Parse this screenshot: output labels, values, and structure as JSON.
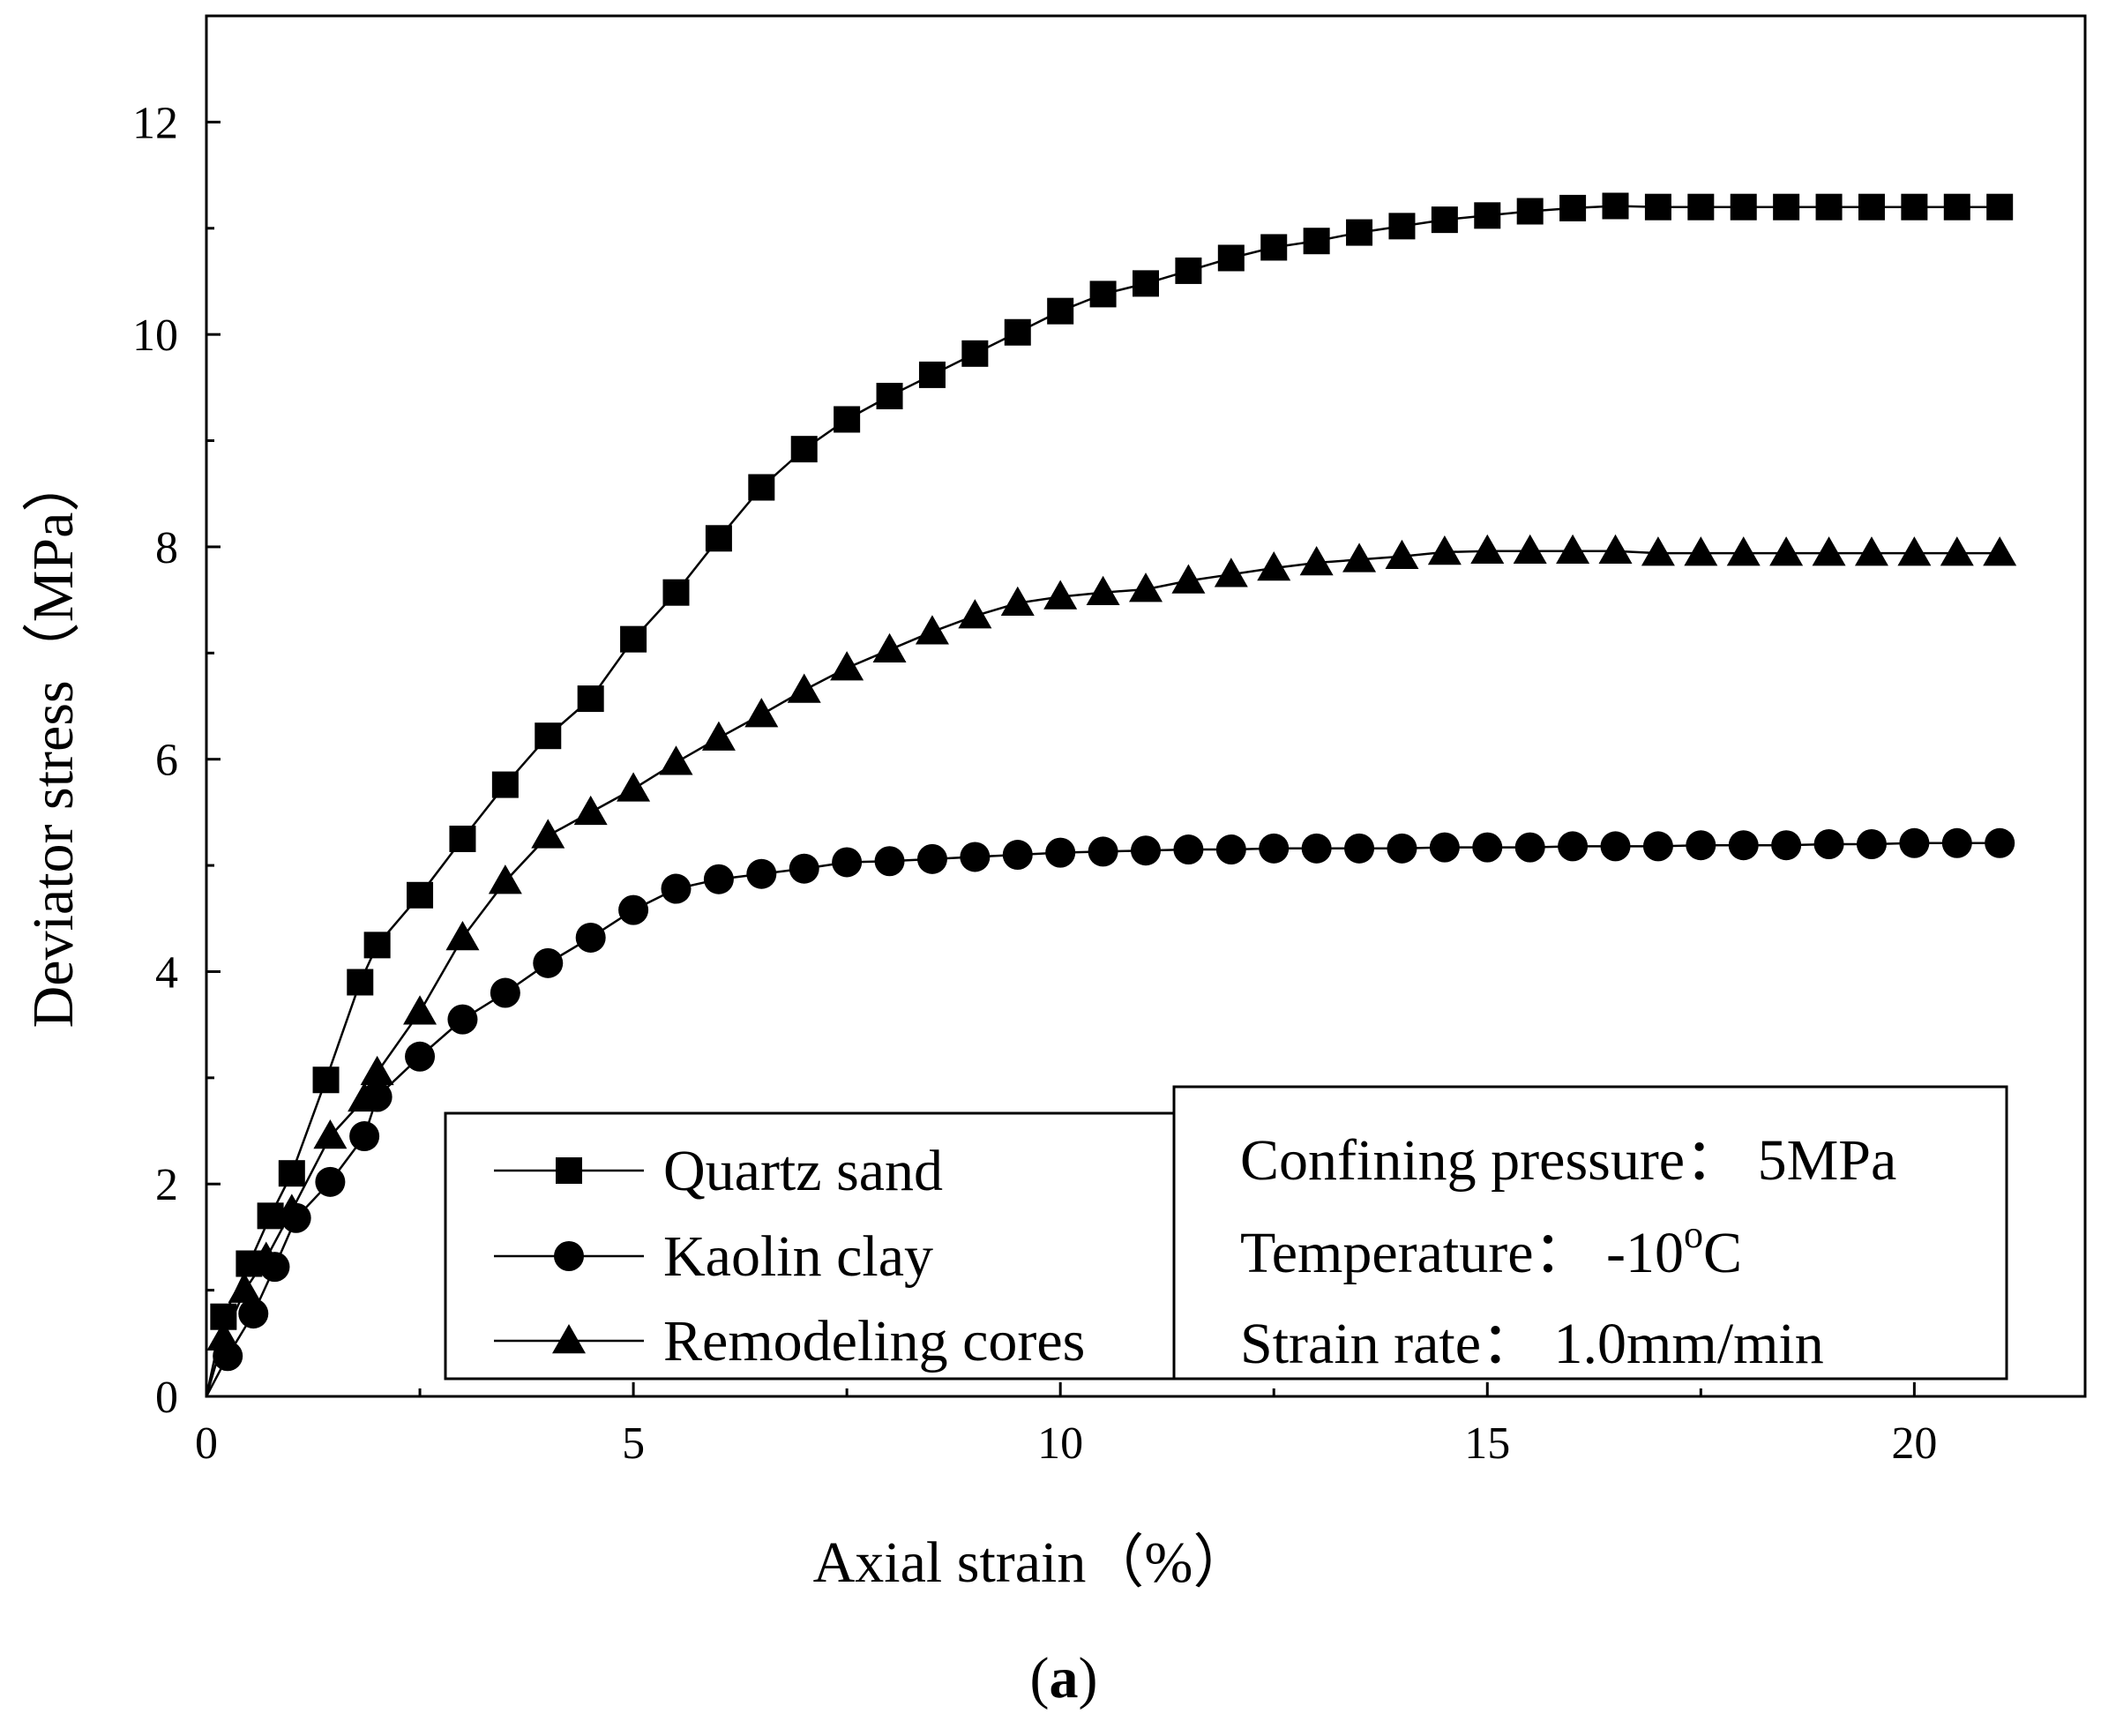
{
  "chart_data": {
    "type": "line",
    "title": "",
    "xlabel": "Axial strain（%）",
    "ylabel": "Deviator stress（MPa）",
    "xlim": [
      0,
      22
    ],
    "ylim": [
      0,
      13
    ],
    "xticks": [
      0,
      5,
      10,
      15,
      20
    ],
    "yticks": [
      0,
      2,
      4,
      6,
      8,
      10,
      12
    ],
    "x_tick_labels": [
      "0",
      "5",
      "10",
      "15",
      "20"
    ],
    "y_tick_labels": [
      "0",
      "2",
      "4",
      "6",
      "8",
      "10",
      "12"
    ],
    "legend_position": "bottom-center",
    "series": [
      {
        "name": "Quartz sand",
        "marker": "square",
        "points": [
          [
            0,
            0
          ],
          [
            0.2,
            0.75
          ],
          [
            0.5,
            1.25
          ],
          [
            0.75,
            1.7
          ],
          [
            1,
            2.1
          ],
          [
            1.4,
            2.98
          ],
          [
            1.8,
            3.9
          ],
          [
            2,
            4.25
          ],
          [
            2.5,
            4.72
          ],
          [
            3,
            5.25
          ],
          [
            3.5,
            5.76
          ],
          [
            4,
            6.22
          ],
          [
            4.5,
            6.57
          ],
          [
            5,
            7.13
          ],
          [
            5.5,
            7.57
          ],
          [
            6,
            8.08
          ],
          [
            6.5,
            8.56
          ],
          [
            7,
            8.92
          ],
          [
            7.5,
            9.2
          ],
          [
            8,
            9.42
          ],
          [
            8.5,
            9.62
          ],
          [
            9,
            9.82
          ],
          [
            9.5,
            10.02
          ],
          [
            10,
            10.22
          ],
          [
            10.5,
            10.38
          ],
          [
            11,
            10.48
          ],
          [
            11.5,
            10.6
          ],
          [
            12,
            10.72
          ],
          [
            12.5,
            10.82
          ],
          [
            13,
            10.88
          ],
          [
            13.5,
            10.96
          ],
          [
            14,
            11.02
          ],
          [
            14.5,
            11.08
          ],
          [
            15,
            11.12
          ],
          [
            15.5,
            11.16
          ],
          [
            16,
            11.19
          ],
          [
            16.5,
            11.21
          ],
          [
            17,
            11.2
          ],
          [
            17.5,
            11.2
          ],
          [
            18,
            11.2
          ],
          [
            18.5,
            11.2
          ],
          [
            19,
            11.2
          ],
          [
            19.5,
            11.2
          ],
          [
            20,
            11.2
          ],
          [
            20.5,
            11.2
          ],
          [
            21,
            11.2
          ]
        ]
      },
      {
        "name": "Kaolin clay",
        "marker": "circle",
        "points": [
          [
            0,
            0
          ],
          [
            0.25,
            0.38
          ],
          [
            0.55,
            0.78
          ],
          [
            0.8,
            1.22
          ],
          [
            1.05,
            1.68
          ],
          [
            1.45,
            2.02
          ],
          [
            1.85,
            2.45
          ],
          [
            2,
            2.82
          ],
          [
            2.5,
            3.2
          ],
          [
            3,
            3.55
          ],
          [
            3.5,
            3.8
          ],
          [
            4,
            4.08
          ],
          [
            4.5,
            4.32
          ],
          [
            5,
            4.58
          ],
          [
            5.5,
            4.78
          ],
          [
            6,
            4.87
          ],
          [
            6.5,
            4.92
          ],
          [
            7,
            4.97
          ],
          [
            7.5,
            5.03
          ],
          [
            8,
            5.04
          ],
          [
            8.5,
            5.06
          ],
          [
            9,
            5.08
          ],
          [
            9.5,
            5.1
          ],
          [
            10,
            5.12
          ],
          [
            10.5,
            5.13
          ],
          [
            11,
            5.14
          ],
          [
            11.5,
            5.15
          ],
          [
            12,
            5.15
          ],
          [
            12.5,
            5.16
          ],
          [
            13,
            5.16
          ],
          [
            13.5,
            5.16
          ],
          [
            14,
            5.16
          ],
          [
            14.5,
            5.17
          ],
          [
            15,
            5.17
          ],
          [
            15.5,
            5.17
          ],
          [
            16,
            5.18
          ],
          [
            16.5,
            5.18
          ],
          [
            17,
            5.18
          ],
          [
            17.5,
            5.19
          ],
          [
            18,
            5.19
          ],
          [
            18.5,
            5.19
          ],
          [
            19,
            5.2
          ],
          [
            19.5,
            5.2
          ],
          [
            20,
            5.21
          ],
          [
            20.5,
            5.21
          ],
          [
            21,
            5.21
          ]
        ]
      },
      {
        "name": "Remodeling cores",
        "marker": "triangle",
        "points": [
          [
            0,
            0
          ],
          [
            0.2,
            0.55
          ],
          [
            0.45,
            1.0
          ],
          [
            0.7,
            1.3
          ],
          [
            1,
            1.75
          ],
          [
            1.45,
            2.45
          ],
          [
            1.85,
            2.8
          ],
          [
            2,
            3.05
          ],
          [
            2.5,
            3.62
          ],
          [
            3,
            4.32
          ],
          [
            3.5,
            4.85
          ],
          [
            4,
            5.28
          ],
          [
            4.5,
            5.5
          ],
          [
            5,
            5.72
          ],
          [
            5.5,
            5.97
          ],
          [
            6,
            6.2
          ],
          [
            6.5,
            6.42
          ],
          [
            7,
            6.65
          ],
          [
            7.5,
            6.86
          ],
          [
            8,
            7.03
          ],
          [
            8.5,
            7.2
          ],
          [
            9,
            7.35
          ],
          [
            9.5,
            7.47
          ],
          [
            10,
            7.53
          ],
          [
            10.5,
            7.57
          ],
          [
            11,
            7.6
          ],
          [
            11.5,
            7.68
          ],
          [
            12,
            7.74
          ],
          [
            12.5,
            7.8
          ],
          [
            13,
            7.85
          ],
          [
            13.5,
            7.88
          ],
          [
            14,
            7.91
          ],
          [
            14.5,
            7.95
          ],
          [
            15,
            7.96
          ],
          [
            15.5,
            7.96
          ],
          [
            16,
            7.96
          ],
          [
            16.5,
            7.96
          ],
          [
            17,
            7.94
          ],
          [
            17.5,
            7.94
          ],
          [
            18,
            7.94
          ],
          [
            18.5,
            7.94
          ],
          [
            19,
            7.94
          ],
          [
            19.5,
            7.94
          ],
          [
            20,
            7.94
          ],
          [
            20.5,
            7.94
          ],
          [
            21,
            7.94
          ]
        ]
      }
    ],
    "annotations": {
      "confining": "Confining pressure：  5MPa",
      "temperature_prefix": "Temperature：  -10",
      "temperature_degree": "o",
      "temperature_unit": "C",
      "strain_rate": "Strain rate：  1.0mm/min"
    },
    "caption_paren_open": "(",
    "caption_letter": "a",
    "caption_paren_close": ")"
  },
  "colors": {
    "line": "#000000",
    "background": "#ffffff"
  }
}
